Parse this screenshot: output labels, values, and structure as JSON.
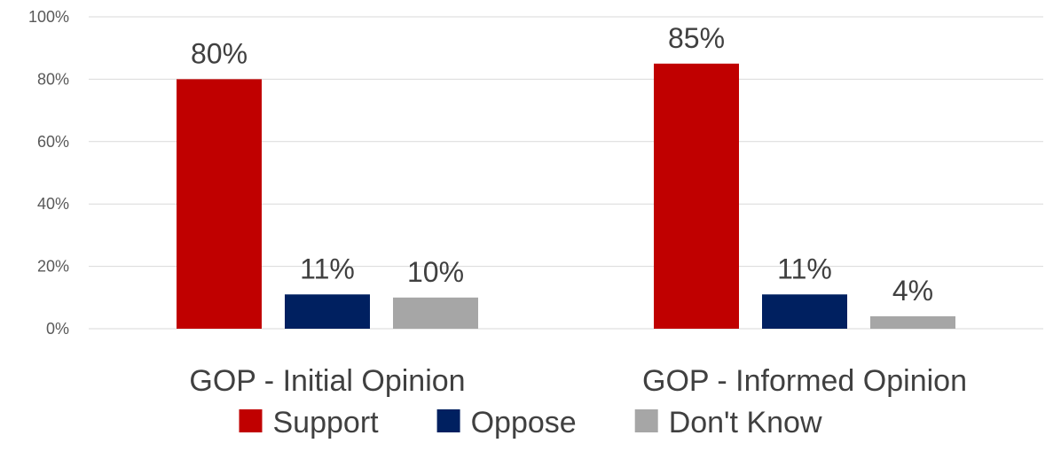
{
  "chart_data": {
    "type": "bar",
    "categories": [
      "GOP - Initial Opinion",
      "GOP - Informed Opinion"
    ],
    "series": [
      {
        "name": "Support",
        "values": [
          80,
          85
        ],
        "color": "#C00000"
      },
      {
        "name": "Oppose",
        "values": [
          11,
          11
        ],
        "color": "#002060"
      },
      {
        "name": "Don't Know",
        "values": [
          10,
          4
        ],
        "color": "#A6A6A6"
      }
    ],
    "data_labels": [
      [
        "80%",
        "85%"
      ],
      [
        "11%",
        "11%"
      ],
      [
        "10%",
        "4%"
      ]
    ],
    "ylim": [
      0,
      100
    ],
    "yticks": [
      0,
      20,
      40,
      60,
      80,
      100
    ],
    "ytick_labels": [
      "0%",
      "20%",
      "40%",
      "60%",
      "80%",
      "100%"
    ],
    "grid": true,
    "legend_position": "bottom"
  }
}
